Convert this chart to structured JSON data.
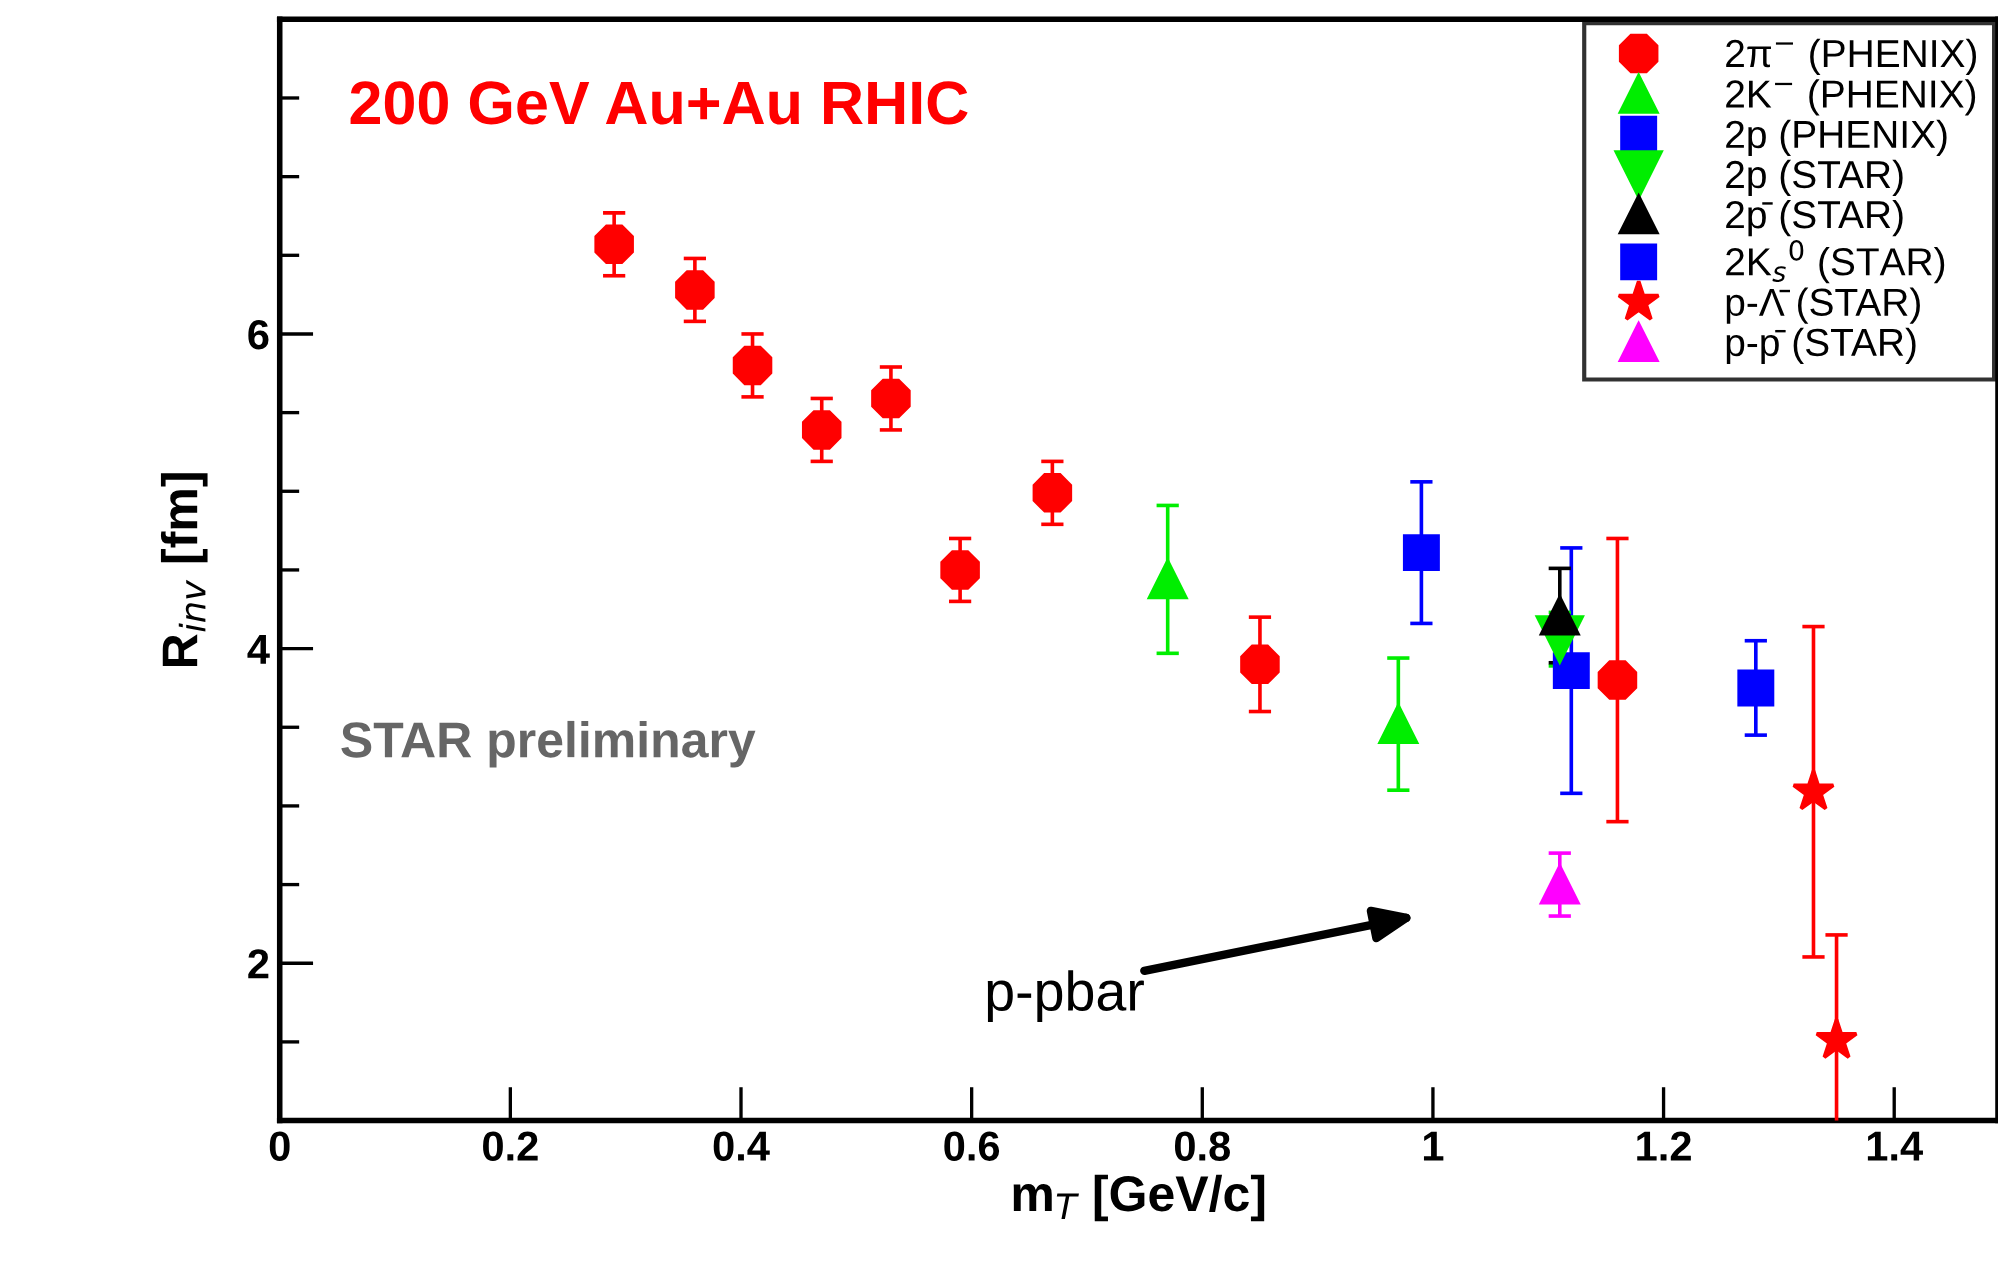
{
  "chart_data": {
    "type": "scatter",
    "title": "200 GeV Au+Au RHIC",
    "xlabel": "m$_{T}$ [GeV/c]",
    "ylabel": "R$_{inv}$ [fm]",
    "xlim": [
      0,
      1.49
    ],
    "xticks": [
      0,
      0.2,
      0.4,
      0.6,
      0.8,
      1,
      1.2,
      1.4
    ],
    "ylim": [
      1,
      8
    ],
    "yticks": [
      {
        "value": 1.5,
        "label": null
      },
      2,
      {
        "value": 2.5,
        "label": null
      },
      {
        "value": 3,
        "label": null
      },
      {
        "value": 3.5,
        "label": null
      },
      4,
      {
        "value": 4.5,
        "label": null
      },
      {
        "value": 5,
        "label": null
      },
      {
        "value": 5.5,
        "label": null
      },
      6,
      {
        "value": 6.5,
        "label": null
      },
      {
        "value": 7,
        "label": null
      },
      {
        "value": 7.5,
        "label": null
      }
    ],
    "grid": false,
    "legend": "top right",
    "series": [
      {
        "name": "2π$^{−}$ (PHENIX)",
        "color": "#ff0000",
        "marker": "circle",
        "x": [
          0.29,
          0.36,
          0.41,
          0.47,
          0.53,
          0.59,
          0.67,
          0.85,
          1.16
        ],
        "values": [
          6.57,
          6.28,
          5.8,
          5.39,
          5.59,
          4.5,
          4.99,
          3.9,
          3.8
        ],
        "errors": [
          0.2,
          0.2,
          0.2,
          0.2,
          0.2,
          0.2,
          0.2,
          0.3,
          0.9
        ]
      },
      {
        "name": "2K$^{−}$ (PHENIX)",
        "color": "#00ee00",
        "marker": "triangle",
        "x": [
          0.77,
          0.97
        ],
        "values": [
          4.44,
          3.52
        ],
        "errors": [
          0.47,
          0.42
        ]
      },
      {
        "name": "2p (PHENIX)",
        "color": "#0000ff",
        "marker": "square",
        "x": [
          1.12,
          1.28
        ],
        "values": [
          3.86,
          3.75
        ],
        "errors": [
          0.78,
          0.3
        ]
      },
      {
        "name": "2p (STAR)",
        "color": "#00ee00",
        "marker": "triangle_down",
        "x": [
          1.11
        ],
        "values": [
          4.06
        ],
        "errors": [
          0.17
        ]
      },
      {
        "name": "2p̄ (STAR)",
        "color": "#000000",
        "marker": "triangle",
        "x": [
          1.11
        ],
        "values": [
          4.21
        ],
        "errors": [
          0.3
        ]
      },
      {
        "name": "2K$_{s}$$^{0}$ (STAR)",
        "color": "#0000ff",
        "marker": "square",
        "x": [
          0.99
        ],
        "values": [
          4.61
        ],
        "errors": [
          0.45
        ]
      },
      {
        "name": "p-Λ̄ (STAR)",
        "color": "#ff0000",
        "marker": "star",
        "x": [
          1.33,
          1.35
        ],
        "values": [
          3.09,
          1.51
        ],
        "errors": [
          1.05,
          0.67
        ]
      },
      {
        "name": "p-p̄ (STAR)",
        "color": "#ff00ff",
        "marker": "triangle",
        "x": [
          1.11
        ],
        "values": [
          2.5
        ],
        "errors": [
          0.2
        ]
      }
    ],
    "annotations": [
      "STAR preliminary",
      "p-pbar"
    ]
  }
}
